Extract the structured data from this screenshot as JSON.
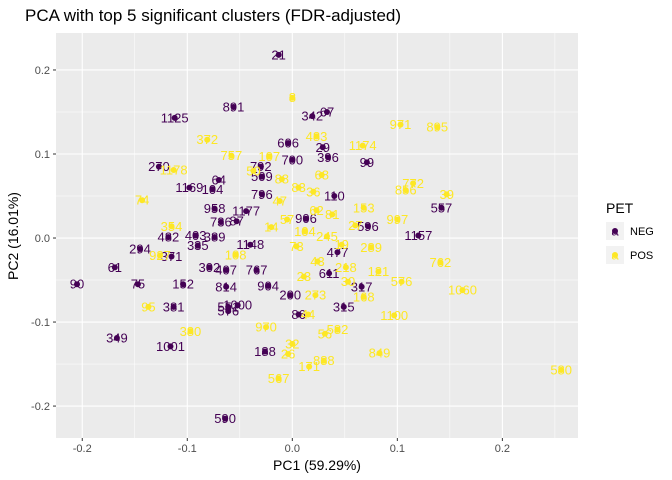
{
  "chart_data": {
    "type": "scatter",
    "title": "PCA with top 5 significant clusters (FDR-adjusted)",
    "xlabel": "PC1 (59.29%)",
    "ylabel": "PC2 (16.01%)",
    "xlim": [
      -0.225,
      0.272
    ],
    "ylim": [
      -0.238,
      0.244
    ],
    "xticks": [
      -0.2,
      -0.1,
      0.0,
      0.1,
      0.2
    ],
    "xtick_labels": [
      "-0.2",
      "-0.1",
      "0.0",
      "0.1",
      "0.2"
    ],
    "yticks": [
      -0.2,
      -0.1,
      0.0,
      0.1,
      0.2
    ],
    "ytick_labels": [
      "-0.2",
      "-0.1",
      "0.0",
      "0.1",
      "0.2"
    ],
    "grid": true,
    "legend": {
      "title": "PET",
      "position": "right",
      "entries": [
        {
          "label": "NEG",
          "color": "#440154"
        },
        {
          "label": "POS",
          "color": "#FDE725"
        }
      ]
    },
    "series": [
      {
        "name": "NEG",
        "color": "#440154",
        "points": [
          {
            "x": -0.013,
            "y": 0.218,
            "label": "21"
          },
          {
            "x": -0.056,
            "y": 0.156,
            "label": "891"
          },
          {
            "x": -0.112,
            "y": 0.143,
            "label": "1125"
          },
          {
            "x": 0.033,
            "y": 0.15,
            "label": "67"
          },
          {
            "x": 0.019,
            "y": 0.145,
            "label": "342"
          },
          {
            "x": -0.004,
            "y": 0.113,
            "label": "606"
          },
          {
            "x": 0.029,
            "y": 0.108,
            "label": "29"
          },
          {
            "x": 0.034,
            "y": 0.096,
            "label": "396"
          },
          {
            "x": 0.071,
            "y": 0.09,
            "label": "99"
          },
          {
            "x": -0.127,
            "y": 0.085,
            "label": "270"
          },
          {
            "x": 0.0,
            "y": 0.093,
            "label": "700"
          },
          {
            "x": -0.03,
            "y": 0.085,
            "label": "792"
          },
          {
            "x": -0.029,
            "y": 0.073,
            "label": "509"
          },
          {
            "x": -0.07,
            "y": 0.069,
            "label": "64"
          },
          {
            "x": -0.098,
            "y": 0.06,
            "label": "1169"
          },
          {
            "x": -0.076,
            "y": 0.058,
            "label": "104"
          },
          {
            "x": -0.029,
            "y": 0.052,
            "label": "796"
          },
          {
            "x": 0.04,
            "y": 0.05,
            "label": "110"
          },
          {
            "x": -0.074,
            "y": 0.035,
            "label": "958"
          },
          {
            "x": -0.044,
            "y": 0.032,
            "label": "1177"
          },
          {
            "x": -0.053,
            "y": 0.02,
            "label": "87"
          },
          {
            "x": -0.068,
            "y": 0.019,
            "label": "736"
          },
          {
            "x": 0.142,
            "y": 0.036,
            "label": "557"
          },
          {
            "x": 0.013,
            "y": 0.023,
            "label": "906"
          },
          {
            "x": 0.072,
            "y": 0.014,
            "label": "596"
          },
          {
            "x": -0.118,
            "y": 0.001,
            "label": "482"
          },
          {
            "x": -0.092,
            "y": 0.003,
            "label": "403"
          },
          {
            "x": -0.074,
            "y": 0.001,
            "label": "389"
          },
          {
            "x": -0.09,
            "y": -0.009,
            "label": "335"
          },
          {
            "x": -0.145,
            "y": -0.013,
            "label": "294"
          },
          {
            "x": -0.115,
            "y": -0.022,
            "label": "371"
          },
          {
            "x": 0.12,
            "y": 0.003,
            "label": "1157"
          },
          {
            "x": -0.04,
            "y": -0.008,
            "label": "1148"
          },
          {
            "x": 0.043,
            "y": -0.017,
            "label": "477"
          },
          {
            "x": -0.169,
            "y": -0.035,
            "label": "61"
          },
          {
            "x": -0.079,
            "y": -0.035,
            "label": "302"
          },
          {
            "x": -0.063,
            "y": -0.038,
            "label": "407"
          },
          {
            "x": -0.034,
            "y": -0.038,
            "label": "767"
          },
          {
            "x": 0.035,
            "y": -0.042,
            "label": "611"
          },
          {
            "x": -0.205,
            "y": -0.055,
            "label": "90"
          },
          {
            "x": -0.147,
            "y": -0.055,
            "label": "75"
          },
          {
            "x": -0.104,
            "y": -0.055,
            "label": "152"
          },
          {
            "x": -0.063,
            "y": -0.058,
            "label": "814"
          },
          {
            "x": -0.023,
            "y": -0.057,
            "label": "904"
          },
          {
            "x": 0.066,
            "y": -0.058,
            "label": "317"
          },
          {
            "x": -0.002,
            "y": -0.068,
            "label": "200"
          },
          {
            "x": -0.113,
            "y": -0.082,
            "label": "381"
          },
          {
            "x": -0.061,
            "y": -0.082,
            "label": "551"
          },
          {
            "x": -0.052,
            "y": -0.08,
            "label": "1000"
          },
          {
            "x": -0.061,
            "y": -0.087,
            "label": "576"
          },
          {
            "x": 0.049,
            "y": -0.082,
            "label": "315"
          },
          {
            "x": 0.006,
            "y": -0.091,
            "label": "86"
          },
          {
            "x": -0.167,
            "y": -0.119,
            "label": "349"
          },
          {
            "x": -0.116,
            "y": -0.129,
            "label": "1001"
          },
          {
            "x": -0.026,
            "y": -0.135,
            "label": "188"
          },
          {
            "x": -0.064,
            "y": -0.215,
            "label": "590"
          }
        ]
      },
      {
        "name": "POS",
        "color": "#FDE725",
        "points": [
          {
            "x": 0.0,
            "y": 0.167,
            "label": "8"
          },
          {
            "x": 0.103,
            "y": 0.135,
            "label": "971"
          },
          {
            "x": 0.138,
            "y": 0.132,
            "label": "895"
          },
          {
            "x": 0.023,
            "y": 0.121,
            "label": "483"
          },
          {
            "x": -0.081,
            "y": 0.117,
            "label": "372"
          },
          {
            "x": 0.067,
            "y": 0.11,
            "label": "1174"
          },
          {
            "x": -0.058,
            "y": 0.098,
            "label": "757"
          },
          {
            "x": -0.022,
            "y": 0.097,
            "label": "107"
          },
          {
            "x": -0.113,
            "y": 0.081,
            "label": "1178"
          },
          {
            "x": 0.115,
            "y": 0.065,
            "label": "772"
          },
          {
            "x": 0.108,
            "y": 0.057,
            "label": "856"
          },
          {
            "x": 0.147,
            "y": 0.052,
            "label": "39"
          },
          {
            "x": -0.143,
            "y": 0.045,
            "label": "74"
          },
          {
            "x": 0.068,
            "y": 0.036,
            "label": "153"
          },
          {
            "x": 0.1,
            "y": 0.022,
            "label": "997"
          },
          {
            "x": -0.115,
            "y": 0.014,
            "label": "354"
          },
          {
            "x": 0.075,
            "y": -0.011,
            "label": "289"
          },
          {
            "x": -0.126,
            "y": -0.021,
            "label": "927"
          },
          {
            "x": 0.141,
            "y": -0.029,
            "label": "762"
          },
          {
            "x": -0.054,
            "y": -0.02,
            "label": "108"
          },
          {
            "x": 0.104,
            "y": -0.052,
            "label": "576"
          },
          {
            "x": 0.162,
            "y": -0.062,
            "label": "1060"
          },
          {
            "x": 0.022,
            "y": -0.068,
            "label": "273"
          },
          {
            "x": 0.068,
            "y": -0.07,
            "label": "168"
          },
          {
            "x": -0.137,
            "y": -0.082,
            "label": "95"
          },
          {
            "x": 0.097,
            "y": -0.092,
            "label": "1100"
          },
          {
            "x": 0.015,
            "y": -0.091,
            "label": "44"
          },
          {
            "x": -0.025,
            "y": -0.106,
            "label": "970"
          },
          {
            "x": 0.043,
            "y": -0.109,
            "label": "582"
          },
          {
            "x": -0.097,
            "y": -0.111,
            "label": "380"
          },
          {
            "x": 0.031,
            "y": -0.114,
            "label": "56"
          },
          {
            "x": 0.0,
            "y": -0.126,
            "label": "32"
          },
          {
            "x": -0.004,
            "y": -0.138,
            "label": "26"
          },
          {
            "x": 0.083,
            "y": -0.137,
            "label": "849"
          },
          {
            "x": 0.03,
            "y": -0.146,
            "label": "888"
          },
          {
            "x": 0.016,
            "y": -0.153,
            "label": "171"
          },
          {
            "x": -0.013,
            "y": -0.167,
            "label": "567"
          },
          {
            "x": 0.256,
            "y": -0.157,
            "label": "580"
          },
          {
            "x": -0.037,
            "y": 0.08,
            "label": "50"
          },
          {
            "x": -0.01,
            "y": 0.07,
            "label": "88"
          },
          {
            "x": 0.006,
            "y": 0.06,
            "label": "83"
          },
          {
            "x": 0.02,
            "y": 0.055,
            "label": "36"
          },
          {
            "x": -0.012,
            "y": 0.044,
            "label": "47"
          },
          {
            "x": 0.023,
            "y": 0.033,
            "label": "62"
          },
          {
            "x": 0.038,
            "y": 0.028,
            "label": "81"
          },
          {
            "x": -0.005,
            "y": 0.022,
            "label": "57"
          },
          {
            "x": 0.012,
            "y": 0.008,
            "label": "104"
          },
          {
            "x": 0.033,
            "y": 0.002,
            "label": "245"
          },
          {
            "x": 0.047,
            "y": -0.008,
            "label": "19"
          },
          {
            "x": 0.004,
            "y": -0.01,
            "label": "73"
          },
          {
            "x": 0.024,
            "y": -0.028,
            "label": "43"
          },
          {
            "x": 0.051,
            "y": -0.035,
            "label": "218"
          },
          {
            "x": 0.011,
            "y": -0.046,
            "label": "23"
          },
          {
            "x": 0.053,
            "y": -0.052,
            "label": "30"
          },
          {
            "x": 0.082,
            "y": -0.04,
            "label": "121"
          },
          {
            "x": -0.02,
            "y": 0.013,
            "label": "14"
          },
          {
            "x": 0.028,
            "y": 0.075,
            "label": "68"
          },
          {
            "x": 0.06,
            "y": 0.015,
            "label": "27"
          }
        ]
      }
    ]
  }
}
